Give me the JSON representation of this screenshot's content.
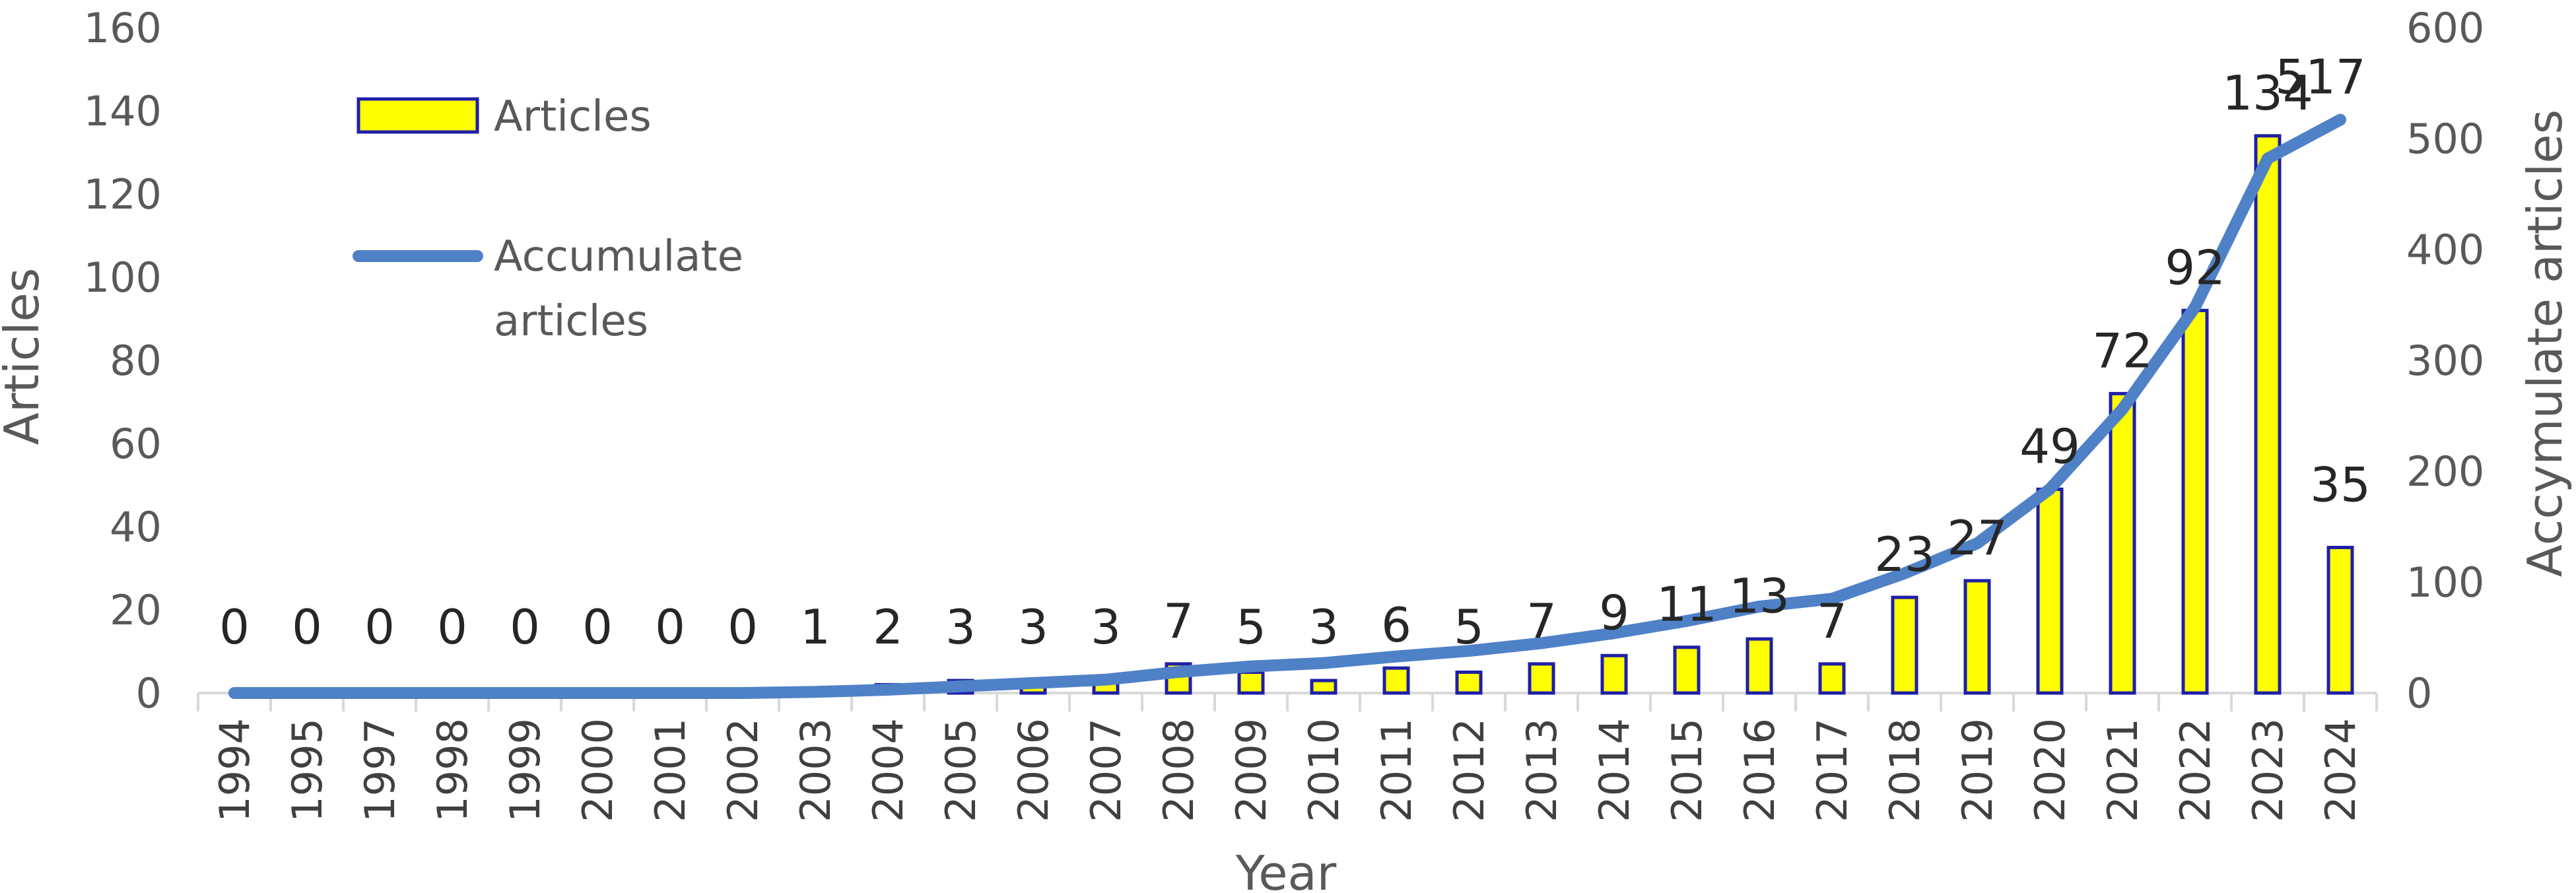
{
  "chart_data": {
    "type": "bar",
    "categories": [
      "1994",
      "1995",
      "1997",
      "1998",
      "1999",
      "2000",
      "2001",
      "2002",
      "2003",
      "2004",
      "2005",
      "2006",
      "2007",
      "2008",
      "2009",
      "2010",
      "2011",
      "2012",
      "2013",
      "2014",
      "2015",
      "2016",
      "2017",
      "2018",
      "2019",
      "2020",
      "2021",
      "2022",
      "2023",
      "2024"
    ],
    "series": [
      {
        "name": "Articles",
        "type": "bar",
        "axis": "left",
        "values": [
          0,
          0,
          0,
          0,
          0,
          0,
          0,
          0,
          1,
          2,
          3,
          3,
          3,
          7,
          5,
          3,
          6,
          5,
          7,
          9,
          11,
          13,
          7,
          23,
          27,
          49,
          72,
          92,
          134,
          35
        ]
      },
      {
        "name": "Accumulate articles",
        "type": "line",
        "axis": "right",
        "values": [
          0,
          0,
          0,
          0,
          0,
          0,
          0,
          0,
          1,
          3,
          6,
          9,
          12,
          19,
          24,
          27,
          33,
          38,
          45,
          54,
          65,
          78,
          85,
          108,
          135,
          184,
          256,
          348,
          482,
          517
        ]
      }
    ],
    "data_labels": [
      "0",
      "0",
      "0",
      "0",
      "0",
      "0",
      "0",
      "0",
      "1",
      "2",
      "3",
      "3",
      "3",
      "7",
      "5",
      "3",
      "6",
      "5",
      "7",
      "9",
      "11",
      "13",
      "7",
      "23",
      "27",
      "49",
      "72",
      "92",
      "134",
      "35"
    ],
    "final_accumulate_label": "517",
    "xlabel": "Year",
    "ylabel": "Articles",
    "ylabel_right": "Accymulate  articles",
    "ylim": [
      0,
      160
    ],
    "ylim_right": [
      0,
      600
    ],
    "yticks": [
      "0",
      "20",
      "40",
      "60",
      "80",
      "100",
      "120",
      "140",
      "160"
    ],
    "yticks_right": [
      "0",
      "100",
      "200",
      "300",
      "400",
      "500",
      "600"
    ],
    "legend": {
      "placement": "top-left",
      "entries": [
        "Articles",
        "Accumulate",
        "articles"
      ]
    },
    "grid": false,
    "colors": {
      "bar_fill": "#ffff00",
      "bar_stroke": "#1f1fa8",
      "line": "#4f81c7",
      "axis": "#d9d9d9"
    }
  }
}
